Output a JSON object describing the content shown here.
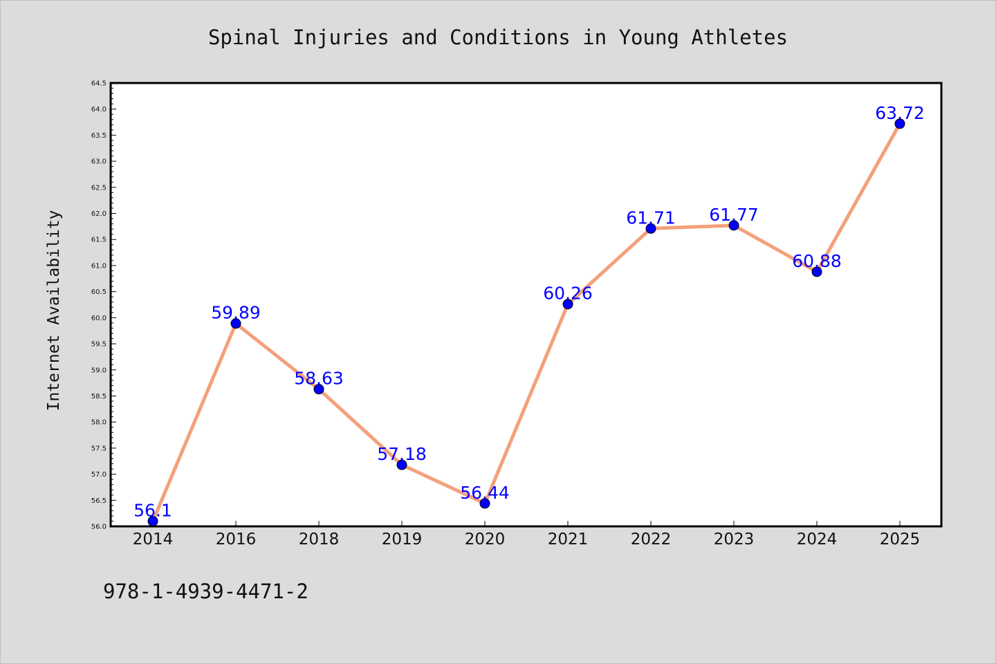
{
  "chart_data": {
    "type": "line",
    "title": "Spinal Injuries and Conditions in Young Athletes",
    "ylabel": "Internet Availability",
    "xlabel": "",
    "categories": [
      "2014",
      "2016",
      "2018",
      "2019",
      "2020",
      "2021",
      "2022",
      "2023",
      "2024",
      "2025"
    ],
    "values": [
      56.1,
      59.89,
      58.63,
      57.18,
      56.44,
      60.26,
      61.71,
      61.77,
      60.88,
      63.72
    ],
    "data_labels": [
      "56.1",
      "59.89",
      "58.63",
      "57.18",
      "56.44",
      "60.26",
      "61.71",
      "61.77",
      "60.88",
      "63.72"
    ],
    "ylim": [
      56.0,
      64.5
    ],
    "yticks": [
      "56.0",
      "56.5",
      "57.0",
      "57.5",
      "58.0",
      "58.5",
      "59.0",
      "59.5",
      "60.0",
      "60.5",
      "61.0",
      "61.5",
      "62.0",
      "62.5",
      "63.0",
      "63.5",
      "64.0",
      "64.5"
    ],
    "grid": false,
    "line_color": "#f4a07c",
    "marker_color": "#0000ff",
    "label_color": "#0000ff",
    "plot_background": "#ffffff",
    "figure_background": "#dcdcdc"
  },
  "footer": {
    "isbn": "978-1-4939-4471-2"
  }
}
